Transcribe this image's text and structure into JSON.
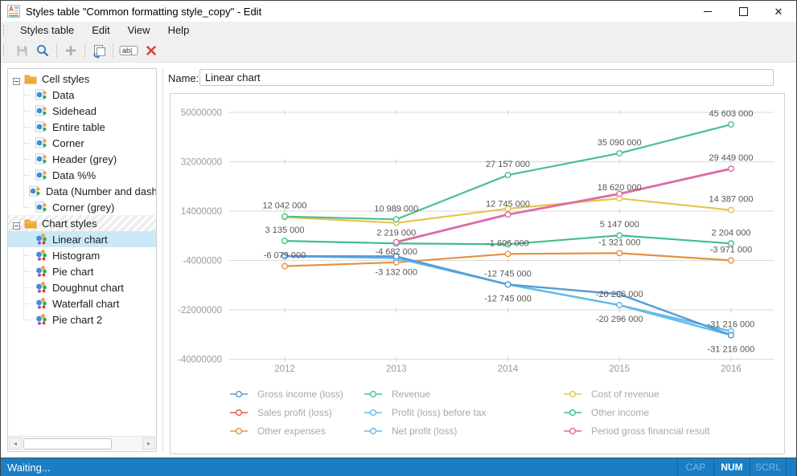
{
  "window": {
    "title": "Styles table \"Common formatting style_copy\" - Edit"
  },
  "menubar": {
    "items": [
      "Styles table",
      "Edit",
      "View",
      "Help"
    ]
  },
  "toolbar": {
    "buttons": [
      "save",
      "find",
      "add",
      "duplicate",
      "rename",
      "delete"
    ]
  },
  "sidebar": {
    "groups": [
      {
        "label": "Cell styles",
        "icon": "folder-icon",
        "style_kind": "cell",
        "hatched": false,
        "items": [
          {
            "label": "Data",
            "selected": false
          },
          {
            "label": "Sidehead",
            "selected": false
          },
          {
            "label": "Entire table",
            "selected": false
          },
          {
            "label": "Corner",
            "selected": false
          },
          {
            "label": "Header (grey)",
            "selected": false
          },
          {
            "label": "Data %%",
            "selected": false
          },
          {
            "label": "Data (Number and dash",
            "selected": false
          },
          {
            "label": "Corner (grey)",
            "selected": false
          }
        ]
      },
      {
        "label": "Chart styles",
        "icon": "folder-icon",
        "style_kind": "chart",
        "hatched": true,
        "items": [
          {
            "label": "Linear chart",
            "selected": true
          },
          {
            "label": "Histogram",
            "selected": false
          },
          {
            "label": "Pie chart",
            "selected": false
          },
          {
            "label": "Doughnut chart",
            "selected": false
          },
          {
            "label": "Waterfall chart",
            "selected": false
          },
          {
            "label": "Pie chart 2",
            "selected": false
          }
        ]
      }
    ]
  },
  "main": {
    "name_label": "Name:",
    "name_value": "Linear chart"
  },
  "chart_data": {
    "type": "line",
    "x": [
      "2012",
      "2013",
      "2014",
      "2015",
      "2016"
    ],
    "y_ticks": [
      50000000,
      32000000,
      14000000,
      -4000000,
      -22000000,
      -40000000
    ],
    "ylim": [
      -40000000,
      50000000
    ],
    "grid": "horizontal",
    "legend_position": "bottom",
    "series": [
      {
        "name": "Gross income (loss)",
        "color": "#569bd2",
        "width": 2.4,
        "values": [
          -2400000,
          -2500000,
          -12745000,
          -16300000,
          -31216000
        ]
      },
      {
        "name": "Revenue",
        "color": "#4ec08c",
        "width": 2.2,
        "values": [
          12042000,
          10989000,
          27157000,
          35090000,
          45603000
        ]
      },
      {
        "name": "Cost of revenue",
        "color": "#e7c44f",
        "width": 2.2,
        "values": [
          11800000,
          9700000,
          14900000,
          18620000,
          14387000
        ]
      },
      {
        "name": "Sales profit (loss)",
        "color": "#e05a50",
        "width": 2.2,
        "values": [
          null,
          null,
          null,
          null,
          null
        ]
      },
      {
        "name": "Profit (loss) before tax",
        "color": "#63bce9",
        "width": 2.4,
        "values": [
          -2400000,
          -3132000,
          -12745000,
          -20296000,
          -29800000
        ]
      },
      {
        "name": "Other income",
        "color": "#43bd8f",
        "width": 2.2,
        "values": [
          3135000,
          2219000,
          1900000,
          5147000,
          2204000
        ]
      },
      {
        "name": "Other expenses",
        "color": "#e5913f",
        "width": 2.2,
        "values": [
          -6079000,
          -4682000,
          -1606000,
          -1321000,
          -3971000
        ]
      },
      {
        "name": "Net profit (loss)",
        "color": "#63bce9",
        "width": 2.4,
        "values": [
          -2400000,
          -3132000,
          -12745000,
          -20296000,
          -31216000
        ]
      },
      {
        "name": "Period gross financial result",
        "color": "#dc6ba4",
        "width": 2.8,
        "values": [
          null,
          2700000,
          12745000,
          20300000,
          29449000
        ]
      }
    ],
    "draw_order": [
      2,
      5,
      6,
      1,
      7,
      4,
      0,
      8
    ],
    "legend_columns": [
      [
        0,
        3,
        6
      ],
      [
        1,
        4,
        7
      ],
      [
        2,
        5,
        8
      ]
    ],
    "point_labels": [
      {
        "x": 0,
        "value": 12042000,
        "text": "12 042 000",
        "pos": "above"
      },
      {
        "x": 0,
        "value": 3135000,
        "text": "3 135 000",
        "pos": "above"
      },
      {
        "x": 0,
        "value": -6079000,
        "text": "-6 079 000",
        "pos": "above"
      },
      {
        "x": 1,
        "value": 10989000,
        "text": "10 989 000",
        "pos": "above"
      },
      {
        "x": 1,
        "value": 2219000,
        "text": "2 219 000",
        "pos": "above"
      },
      {
        "x": 1,
        "value": -4682000,
        "text": "-4 682 000",
        "pos": "above"
      },
      {
        "x": 1,
        "value": -3132000,
        "text": "-3 132 000",
        "pos": "below"
      },
      {
        "x": 2,
        "value": 27157000,
        "text": "27 157 000",
        "pos": "above"
      },
      {
        "x": 2,
        "value": 12745000,
        "text": "12 745 000",
        "pos": "above"
      },
      {
        "x": 2,
        "value": -1606000,
        "text": "-1 606 000",
        "pos": "above"
      },
      {
        "x": 2,
        "value": -12745000,
        "text": "-12 745 000",
        "pos": "above"
      },
      {
        "x": 2,
        "value": -12745000,
        "text": "-12 745 000",
        "pos": "below"
      },
      {
        "x": 3,
        "value": 35090000,
        "text": "35 090 000",
        "pos": "above"
      },
      {
        "x": 3,
        "value": 18620000,
        "text": "18 620 000",
        "pos": "above"
      },
      {
        "x": 3,
        "value": 5147000,
        "text": "5 147 000",
        "pos": "above"
      },
      {
        "x": 3,
        "value": -1321000,
        "text": "-1 321 000",
        "pos": "above"
      },
      {
        "x": 3,
        "value": -20296000,
        "text": "-20 296 000",
        "pos": "above"
      },
      {
        "x": 3,
        "value": -20296000,
        "text": "-20 296 000",
        "pos": "below"
      },
      {
        "x": 4,
        "value": 45603000,
        "text": "45 603 000",
        "pos": "above"
      },
      {
        "x": 4,
        "value": 29449000,
        "text": "29 449 000",
        "pos": "above"
      },
      {
        "x": 4,
        "value": 14387000,
        "text": "14 387 000",
        "pos": "above"
      },
      {
        "x": 4,
        "value": 2204000,
        "text": "2 204 000",
        "pos": "above"
      },
      {
        "x": 4,
        "value": -3971000,
        "text": "-3 971 000",
        "pos": "above"
      },
      {
        "x": 4,
        "value": -31216000,
        "text": "-31 216 000",
        "pos": "above"
      },
      {
        "x": 4,
        "value": -31216000,
        "text": "-31 216 000",
        "pos": "below"
      }
    ]
  },
  "statusbar": {
    "message": "Waiting...",
    "indicators": [
      {
        "label": "CAP",
        "active": false
      },
      {
        "label": "NUM",
        "active": true
      },
      {
        "label": "SCRL",
        "active": false
      }
    ]
  }
}
